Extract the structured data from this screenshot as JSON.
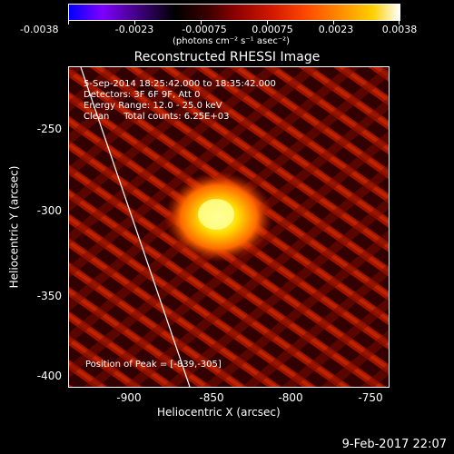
{
  "colorbar": {
    "tick_labels": [
      "-0.0038",
      "-0.0023",
      "-0.00075",
      "0.00075",
      "0.0023",
      "0.0038"
    ],
    "units": "(photons cm⁻² s⁻¹ asec⁻²)"
  },
  "title": "Reconstructed RHESSI Image",
  "annotations": {
    "time_range": "5-Sep-2014 18:25:42.000 to 18:35:42.000",
    "detectors": "Detectors: 3F 6F 9F, Att 0",
    "energy": "Energy Range: 12.0 - 25.0 keV",
    "clean": "Clean     Total counts: 6.25E+03",
    "peak": "Position of Peak = [-839,-305]"
  },
  "axes": {
    "xlabel": "Heliocentric X (arcsec)",
    "ylabel": "Heliocentric Y (arcsec)",
    "xticks": [
      "-900",
      "-850",
      "-800",
      "-750"
    ],
    "yticks": [
      "-250",
      "-300",
      "-350",
      "-400"
    ]
  },
  "footer": {
    "date": "9-Feb-2017 22:07"
  },
  "colors": {
    "background": "#000000",
    "peak": "#ffff80",
    "noise": "#b01500"
  }
}
